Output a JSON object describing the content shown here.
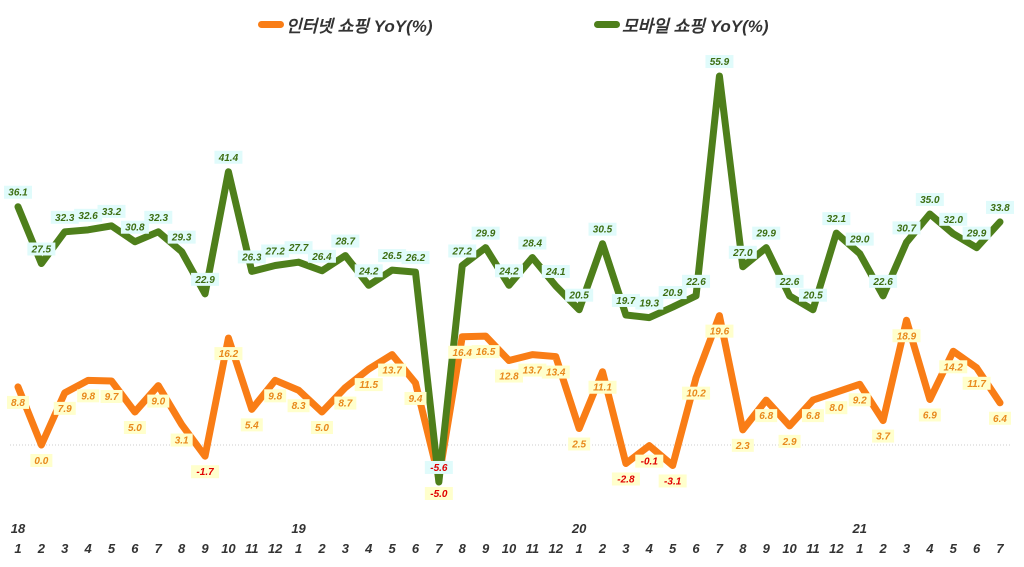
{
  "chart_data": {
    "type": "line",
    "title": "",
    "xlabel": "",
    "ylabel": "",
    "ylim": [
      -10,
      62
    ],
    "grid": false,
    "legend_position": "top",
    "year_labels": [
      {
        "index": 0,
        "label": "18"
      },
      {
        "index": 12,
        "label": "19"
      },
      {
        "index": 24,
        "label": "20"
      },
      {
        "index": 36,
        "label": "21"
      }
    ],
    "x": [
      "1",
      "2",
      "3",
      "4",
      "5",
      "6",
      "7",
      "8",
      "9",
      "10",
      "11",
      "12",
      "1",
      "2",
      "3",
      "4",
      "5",
      "6",
      "7",
      "8",
      "9",
      "10",
      "11",
      "12",
      "1",
      "2",
      "3",
      "4",
      "5",
      "6",
      "7",
      "8",
      "9",
      "10",
      "11",
      "12",
      "1",
      "2",
      "3",
      "4",
      "5",
      "6",
      "7"
    ],
    "series": [
      {
        "name": "인터넷 쇼핑 YoY(%)",
        "color": "#f97d16",
        "values": [
          8.8,
          0.0,
          7.9,
          9.8,
          9.7,
          5.0,
          9.0,
          3.1,
          -1.7,
          16.2,
          5.4,
          9.8,
          8.3,
          5.0,
          8.7,
          11.5,
          13.7,
          9.4,
          -5.0,
          16.4,
          16.5,
          12.8,
          13.7,
          13.4,
          2.5,
          11.1,
          -2.8,
          -0.1,
          -3.1,
          10.2,
          19.6,
          2.3,
          6.8,
          2.9,
          6.8,
          8.0,
          9.2,
          3.7,
          18.9,
          6.9,
          14.2,
          11.7,
          6.4
        ]
      },
      {
        "name": "모바일 쇼핑 YoY(%)",
        "color": "#4e7f1b",
        "values": [
          36.1,
          27.5,
          32.3,
          32.6,
          33.2,
          30.8,
          32.3,
          29.3,
          22.9,
          41.4,
          26.3,
          27.2,
          27.7,
          26.4,
          28.7,
          24.2,
          26.5,
          26.2,
          -5.6,
          27.2,
          29.9,
          24.2,
          28.4,
          24.1,
          20.5,
          30.5,
          19.7,
          19.3,
          20.9,
          22.6,
          55.9,
          27.0,
          29.9,
          22.6,
          20.5,
          32.1,
          29.0,
          22.6,
          30.7,
          35.0,
          32.0,
          29.9,
          33.8
        ]
      }
    ]
  }
}
